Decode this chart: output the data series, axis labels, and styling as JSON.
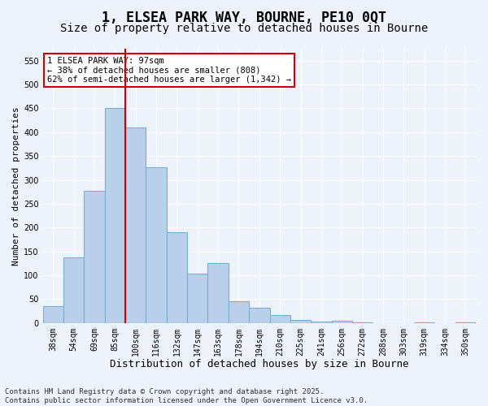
{
  "title": "1, ELSEA PARK WAY, BOURNE, PE10 0QT",
  "subtitle": "Size of property relative to detached houses in Bourne",
  "xlabel": "Distribution of detached houses by size in Bourne",
  "ylabel": "Number of detached properties",
  "categories": [
    "38sqm",
    "54sqm",
    "69sqm",
    "85sqm",
    "100sqm",
    "116sqm",
    "132sqm",
    "147sqm",
    "163sqm",
    "178sqm",
    "194sqm",
    "210sqm",
    "225sqm",
    "241sqm",
    "256sqm",
    "272sqm",
    "288sqm",
    "303sqm",
    "319sqm",
    "334sqm",
    "350sqm"
  ],
  "values": [
    36,
    137,
    277,
    450,
    410,
    327,
    190,
    103,
    125,
    45,
    32,
    17,
    6,
    3,
    4,
    2,
    0,
    0,
    2,
    0,
    2
  ],
  "bar_color": "#b8d0ea",
  "bar_edge_color": "#7aaed4",
  "vline_color": "#cc0000",
  "vline_index": 3.5,
  "annotation_text": "1 ELSEA PARK WAY: 97sqm\n← 38% of detached houses are smaller (808)\n62% of semi-detached houses are larger (1,342) →",
  "annotation_box_facecolor": "#ffffff",
  "annotation_box_edgecolor": "#cc0000",
  "ylim": [
    0,
    575
  ],
  "yticks": [
    0,
    50,
    100,
    150,
    200,
    250,
    300,
    350,
    400,
    450,
    500,
    550
  ],
  "bg_color": "#eef2fb",
  "grid_color": "#ffffff",
  "footer": "Contains HM Land Registry data © Crown copyright and database right 2025.\nContains public sector information licensed under the Open Government Licence v3.0.",
  "title_fontsize": 12,
  "subtitle_fontsize": 10,
  "xlabel_fontsize": 9,
  "ylabel_fontsize": 8,
  "tick_fontsize": 7,
  "footer_fontsize": 6.5,
  "annotation_fontsize": 7.5
}
